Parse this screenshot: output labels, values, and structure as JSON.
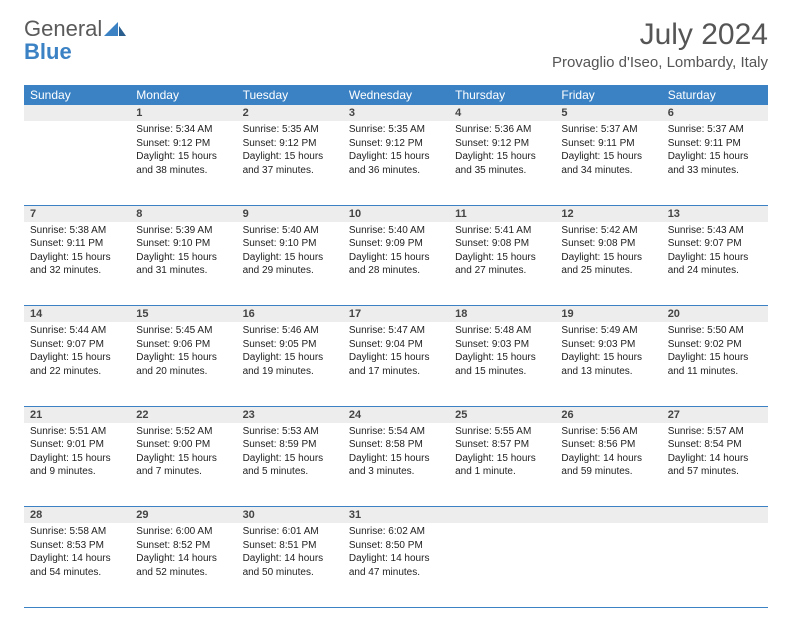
{
  "brand": {
    "general": "General",
    "blue": "Blue"
  },
  "title": "July 2024",
  "location": "Provaglio d'Iseo, Lombardy, Italy",
  "dayHeaders": [
    "Sunday",
    "Monday",
    "Tuesday",
    "Wednesday",
    "Thursday",
    "Friday",
    "Saturday"
  ],
  "colors": {
    "headerBg": "#3b82c4",
    "headerText": "#ffffff",
    "dayNumBg": "#ededed",
    "rowBorder": "#3b82c4",
    "bodyText": "#222222",
    "titleText": "#555555"
  },
  "weeks": [
    [
      {
        "n": "",
        "sr": "",
        "ss": "",
        "dl": ""
      },
      {
        "n": "1",
        "sr": "Sunrise: 5:34 AM",
        "ss": "Sunset: 9:12 PM",
        "dl": "Daylight: 15 hours and 38 minutes."
      },
      {
        "n": "2",
        "sr": "Sunrise: 5:35 AM",
        "ss": "Sunset: 9:12 PM",
        "dl": "Daylight: 15 hours and 37 minutes."
      },
      {
        "n": "3",
        "sr": "Sunrise: 5:35 AM",
        "ss": "Sunset: 9:12 PM",
        "dl": "Daylight: 15 hours and 36 minutes."
      },
      {
        "n": "4",
        "sr": "Sunrise: 5:36 AM",
        "ss": "Sunset: 9:12 PM",
        "dl": "Daylight: 15 hours and 35 minutes."
      },
      {
        "n": "5",
        "sr": "Sunrise: 5:37 AM",
        "ss": "Sunset: 9:11 PM",
        "dl": "Daylight: 15 hours and 34 minutes."
      },
      {
        "n": "6",
        "sr": "Sunrise: 5:37 AM",
        "ss": "Sunset: 9:11 PM",
        "dl": "Daylight: 15 hours and 33 minutes."
      }
    ],
    [
      {
        "n": "7",
        "sr": "Sunrise: 5:38 AM",
        "ss": "Sunset: 9:11 PM",
        "dl": "Daylight: 15 hours and 32 minutes."
      },
      {
        "n": "8",
        "sr": "Sunrise: 5:39 AM",
        "ss": "Sunset: 9:10 PM",
        "dl": "Daylight: 15 hours and 31 minutes."
      },
      {
        "n": "9",
        "sr": "Sunrise: 5:40 AM",
        "ss": "Sunset: 9:10 PM",
        "dl": "Daylight: 15 hours and 29 minutes."
      },
      {
        "n": "10",
        "sr": "Sunrise: 5:40 AM",
        "ss": "Sunset: 9:09 PM",
        "dl": "Daylight: 15 hours and 28 minutes."
      },
      {
        "n": "11",
        "sr": "Sunrise: 5:41 AM",
        "ss": "Sunset: 9:08 PM",
        "dl": "Daylight: 15 hours and 27 minutes."
      },
      {
        "n": "12",
        "sr": "Sunrise: 5:42 AM",
        "ss": "Sunset: 9:08 PM",
        "dl": "Daylight: 15 hours and 25 minutes."
      },
      {
        "n": "13",
        "sr": "Sunrise: 5:43 AM",
        "ss": "Sunset: 9:07 PM",
        "dl": "Daylight: 15 hours and 24 minutes."
      }
    ],
    [
      {
        "n": "14",
        "sr": "Sunrise: 5:44 AM",
        "ss": "Sunset: 9:07 PM",
        "dl": "Daylight: 15 hours and 22 minutes."
      },
      {
        "n": "15",
        "sr": "Sunrise: 5:45 AM",
        "ss": "Sunset: 9:06 PM",
        "dl": "Daylight: 15 hours and 20 minutes."
      },
      {
        "n": "16",
        "sr": "Sunrise: 5:46 AM",
        "ss": "Sunset: 9:05 PM",
        "dl": "Daylight: 15 hours and 19 minutes."
      },
      {
        "n": "17",
        "sr": "Sunrise: 5:47 AM",
        "ss": "Sunset: 9:04 PM",
        "dl": "Daylight: 15 hours and 17 minutes."
      },
      {
        "n": "18",
        "sr": "Sunrise: 5:48 AM",
        "ss": "Sunset: 9:03 PM",
        "dl": "Daylight: 15 hours and 15 minutes."
      },
      {
        "n": "19",
        "sr": "Sunrise: 5:49 AM",
        "ss": "Sunset: 9:03 PM",
        "dl": "Daylight: 15 hours and 13 minutes."
      },
      {
        "n": "20",
        "sr": "Sunrise: 5:50 AM",
        "ss": "Sunset: 9:02 PM",
        "dl": "Daylight: 15 hours and 11 minutes."
      }
    ],
    [
      {
        "n": "21",
        "sr": "Sunrise: 5:51 AM",
        "ss": "Sunset: 9:01 PM",
        "dl": "Daylight: 15 hours and 9 minutes."
      },
      {
        "n": "22",
        "sr": "Sunrise: 5:52 AM",
        "ss": "Sunset: 9:00 PM",
        "dl": "Daylight: 15 hours and 7 minutes."
      },
      {
        "n": "23",
        "sr": "Sunrise: 5:53 AM",
        "ss": "Sunset: 8:59 PM",
        "dl": "Daylight: 15 hours and 5 minutes."
      },
      {
        "n": "24",
        "sr": "Sunrise: 5:54 AM",
        "ss": "Sunset: 8:58 PM",
        "dl": "Daylight: 15 hours and 3 minutes."
      },
      {
        "n": "25",
        "sr": "Sunrise: 5:55 AM",
        "ss": "Sunset: 8:57 PM",
        "dl": "Daylight: 15 hours and 1 minute."
      },
      {
        "n": "26",
        "sr": "Sunrise: 5:56 AM",
        "ss": "Sunset: 8:56 PM",
        "dl": "Daylight: 14 hours and 59 minutes."
      },
      {
        "n": "27",
        "sr": "Sunrise: 5:57 AM",
        "ss": "Sunset: 8:54 PM",
        "dl": "Daylight: 14 hours and 57 minutes."
      }
    ],
    [
      {
        "n": "28",
        "sr": "Sunrise: 5:58 AM",
        "ss": "Sunset: 8:53 PM",
        "dl": "Daylight: 14 hours and 54 minutes."
      },
      {
        "n": "29",
        "sr": "Sunrise: 6:00 AM",
        "ss": "Sunset: 8:52 PM",
        "dl": "Daylight: 14 hours and 52 minutes."
      },
      {
        "n": "30",
        "sr": "Sunrise: 6:01 AM",
        "ss": "Sunset: 8:51 PM",
        "dl": "Daylight: 14 hours and 50 minutes."
      },
      {
        "n": "31",
        "sr": "Sunrise: 6:02 AM",
        "ss": "Sunset: 8:50 PM",
        "dl": "Daylight: 14 hours and 47 minutes."
      },
      {
        "n": "",
        "sr": "",
        "ss": "",
        "dl": ""
      },
      {
        "n": "",
        "sr": "",
        "ss": "",
        "dl": ""
      },
      {
        "n": "",
        "sr": "",
        "ss": "",
        "dl": ""
      }
    ]
  ]
}
